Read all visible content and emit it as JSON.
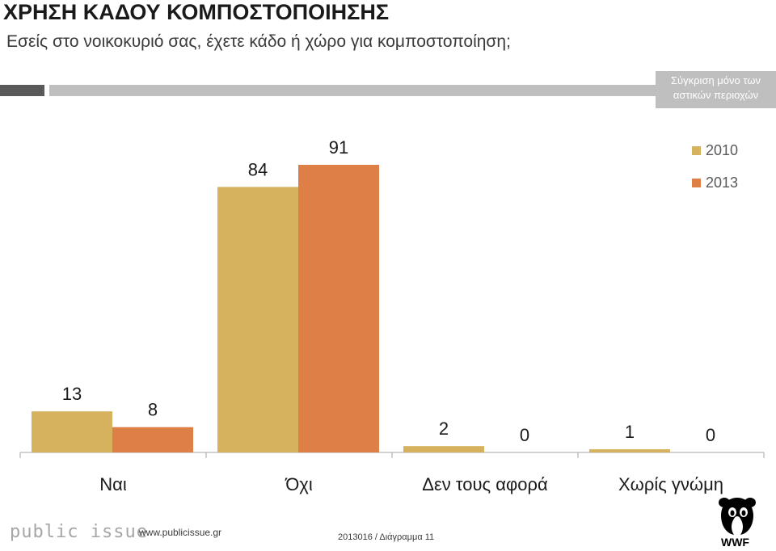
{
  "header": {
    "title": "ΧΡΗΣΗ ΚΑΔΟΥ ΚΟΜΠΟΣΤΟΠΟΙΗΣΗΣ",
    "subtitle": "Εσείς στο νοικοκυριό σας, έχετε κάδο ή χώρο για κομποστοποίηση;"
  },
  "comparison_note": {
    "line1": "Σύγκριση μόνο των",
    "line2": "αστικών περιοχών"
  },
  "chart_data": {
    "type": "bar",
    "title": "ΧΡΗΣΗ ΚΑΔΟΥ ΚΟΜΠΟΣΤΟΠΟΙΗΣΗΣ",
    "categories": [
      "Ναι",
      "Όχι",
      "Δεν τους αφορά",
      "Χωρίς γνώμη"
    ],
    "series": [
      {
        "name": "2010",
        "values": [
          13,
          84,
          2,
          1
        ],
        "color": "#D6B25E"
      },
      {
        "name": "2013",
        "values": [
          8,
          91,
          0,
          0
        ],
        "color": "#DD7F47"
      }
    ],
    "ylim": [
      0,
      100
    ],
    "xlabel": "",
    "ylabel": "",
    "legend": "top-right",
    "grid": false
  },
  "footer": {
    "logo": "public issue",
    "url": "www.publicissue.gr",
    "reference": "2013016 / Διάγραμμα 11",
    "wwf_label": "WWF",
    "wwf_icon": "panda-logo-icon"
  }
}
